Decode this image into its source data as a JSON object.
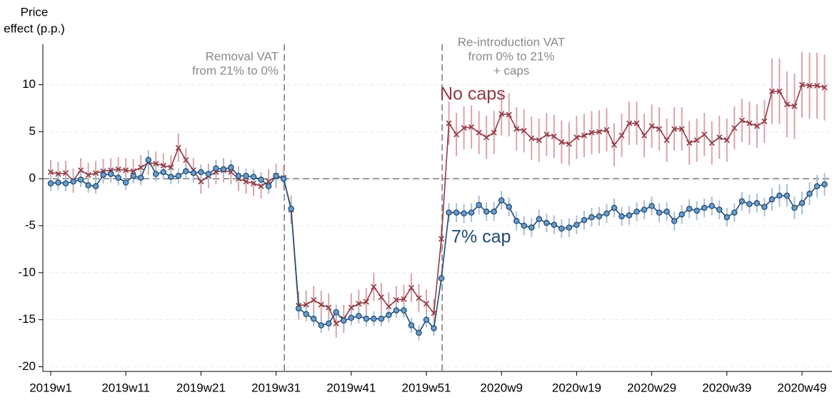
{
  "chart_data": {
    "type": "line",
    "y_label": [
      "Price",
      "effect (p.p.)"
    ],
    "categories": [
      "2019w1",
      null,
      null,
      null,
      null,
      null,
      null,
      null,
      null,
      null,
      "2019w11",
      null,
      null,
      null,
      null,
      null,
      null,
      null,
      null,
      null,
      "2019w21",
      null,
      null,
      null,
      null,
      null,
      null,
      null,
      null,
      null,
      "2019w31",
      null,
      null,
      null,
      null,
      null,
      null,
      null,
      null,
      null,
      "2019w41",
      null,
      null,
      null,
      null,
      null,
      null,
      null,
      null,
      null,
      "2019w51",
      null,
      null,
      null,
      null,
      null,
      null,
      null,
      null,
      null,
      "2020w9",
      null,
      null,
      null,
      null,
      null,
      null,
      null,
      null,
      null,
      "2020w19",
      null,
      null,
      null,
      null,
      null,
      null,
      null,
      null,
      null,
      "2020w29",
      null,
      null,
      null,
      null,
      null,
      null,
      null,
      null,
      null,
      "2020w39",
      null,
      null,
      null,
      null,
      null,
      null,
      null,
      null,
      null,
      "2020w49",
      null,
      null,
      null
    ],
    "ylim": [
      -20.5,
      14.3
    ],
    "yticks": [
      10,
      5,
      0,
      -5,
      -10,
      -15,
      -20
    ],
    "grid": true,
    "reference_lines": {
      "x": [
        31,
        52
      ],
      "y": 0
    },
    "annotations": [
      {
        "lines": [
          "Removal VAT",
          "from 21% to 0%"
        ]
      },
      {
        "lines": [
          "Re-introduction VAT",
          "from 0% to 21%",
          "+ caps"
        ]
      }
    ],
    "series": [
      {
        "name": "No caps",
        "color": "#913a45",
        "error_color": "#dca3ab",
        "marker": "x",
        "values": [
          0.7,
          0.5,
          0.6,
          -0.2,
          0.9,
          0.4,
          0.6,
          0.8,
          0.9,
          1.0,
          0.9,
          0.8,
          1.2,
          1.7,
          1.6,
          1.4,
          1.2,
          3.3,
          2.0,
          0.9,
          -0.3,
          0.3,
          0.7,
          0.9,
          0.7,
          0.0,
          -0.3,
          -0.5,
          -0.8,
          -0.3,
          0.3,
          0.1,
          -3.3,
          -13.5,
          -13.4,
          -12.9,
          -13.4,
          -13.7,
          -15.4,
          -14.9,
          -13.7,
          -13.3,
          -13.1,
          -11.5,
          -12.6,
          -13.6,
          -12.9,
          -12.8,
          -11.6,
          -12.7,
          -13.3,
          -14.3,
          -6.4,
          5.9,
          4.7,
          5.4,
          5.5,
          4.9,
          4.4,
          4.9,
          6.9,
          6.8,
          5.3,
          5.1,
          4.3,
          4.1,
          4.7,
          4.5,
          3.9,
          3.7,
          4.4,
          4.6,
          4.9,
          5.0,
          5.2,
          3.6,
          4.6,
          5.9,
          5.9,
          4.6,
          5.6,
          5.3,
          4.1,
          5.3,
          5.3,
          3.8,
          4.1,
          4.7,
          3.8,
          4.4,
          4.1,
          5.4,
          6.2,
          5.9,
          5.6,
          6.1,
          9.3,
          9.3,
          7.9,
          7.7,
          10.0,
          9.9,
          9.9,
          9.7
        ],
        "errors": [
          1.3,
          1.3,
          1.3,
          1.3,
          1.3,
          1.3,
          1.3,
          1.3,
          1.3,
          1.3,
          1.3,
          1.3,
          1.3,
          1.3,
          1.3,
          1.3,
          1.3,
          1.5,
          1.3,
          1.3,
          1.3,
          1.3,
          1.3,
          1.3,
          1.3,
          1.3,
          1.3,
          1.3,
          1.3,
          1.3,
          1.3,
          1.3,
          1.5,
          1.5,
          1.5,
          1.5,
          1.5,
          1.5,
          1.5,
          1.5,
          1.5,
          1.5,
          1.5,
          1.5,
          1.5,
          1.5,
          1.5,
          1.5,
          1.5,
          1.5,
          1.5,
          1.5,
          1.5,
          2.3,
          2.3,
          2.3,
          2.3,
          2.3,
          2.3,
          2.3,
          2.3,
          2.3,
          2.3,
          2.3,
          2.3,
          2.3,
          2.3,
          2.3,
          2.3,
          2.3,
          2.3,
          2.3,
          2.3,
          2.3,
          2.3,
          2.3,
          2.3,
          2.3,
          2.3,
          2.3,
          2.3,
          2.3,
          2.3,
          2.3,
          2.3,
          2.3,
          2.3,
          2.3,
          2.3,
          2.3,
          2.3,
          2.3,
          2.3,
          2.3,
          2.3,
          2.3,
          3.5,
          3.5,
          3.5,
          3.5,
          3.5,
          3.5,
          3.5,
          3.5
        ]
      },
      {
        "name": "7% cap",
        "color": "#1f4a73",
        "error_color": "#a8bfda",
        "marker": "circle",
        "marker_fill": "#6b9dcc",
        "values": [
          -0.5,
          -0.4,
          -0.5,
          -0.3,
          -0.1,
          -0.7,
          -0.8,
          0.4,
          0.5,
          0.1,
          -0.4,
          0.3,
          0.1,
          2.0,
          0.5,
          0.7,
          0.2,
          0.3,
          0.8,
          0.6,
          0.7,
          0.5,
          1.1,
          1.0,
          1.2,
          0.3,
          0.3,
          0.2,
          -0.1,
          -0.8,
          0.3,
          0.0,
          -3.2,
          -13.8,
          -14.4,
          -14.9,
          -15.6,
          -15.4,
          -14.2,
          -15.1,
          -14.8,
          -14.6,
          -14.9,
          -14.9,
          -14.9,
          -14.5,
          -14.0,
          -14.0,
          -15.6,
          -16.4,
          -15.0,
          -15.9,
          -10.6,
          -3.6,
          -3.6,
          -3.7,
          -3.6,
          -2.8,
          -3.5,
          -3.5,
          -2.3,
          -3.0,
          -4.5,
          -5.0,
          -5.2,
          -4.3,
          -4.7,
          -4.9,
          -5.3,
          -5.2,
          -4.9,
          -4.4,
          -4.1,
          -4.0,
          -3.7,
          -3.1,
          -4.0,
          -3.9,
          -3.5,
          -3.3,
          -2.9,
          -3.6,
          -3.5,
          -4.5,
          -3.8,
          -3.2,
          -3.4,
          -3.1,
          -2.9,
          -3.3,
          -4.1,
          -3.6,
          -2.4,
          -2.7,
          -2.6,
          -3.0,
          -2.2,
          -1.8,
          -1.8,
          -3.1,
          -2.6,
          -1.6,
          -0.8,
          -0.6
        ],
        "errors": [
          0.8,
          0.8,
          0.8,
          0.8,
          0.8,
          0.8,
          0.8,
          0.8,
          0.8,
          0.8,
          0.8,
          0.8,
          0.8,
          0.8,
          0.8,
          0.8,
          0.8,
          0.8,
          0.8,
          0.8,
          0.8,
          0.8,
          0.8,
          0.8,
          0.8,
          0.8,
          0.8,
          0.8,
          0.8,
          0.8,
          0.8,
          0.8,
          0.8,
          0.8,
          0.8,
          0.8,
          0.8,
          0.8,
          0.8,
          0.8,
          0.8,
          0.8,
          0.8,
          0.8,
          0.8,
          0.8,
          0.8,
          0.8,
          0.8,
          0.8,
          0.8,
          0.8,
          0.8,
          1.0,
          1.0,
          1.0,
          1.0,
          1.0,
          1.0,
          1.0,
          1.0,
          1.0,
          1.0,
          1.0,
          1.0,
          1.0,
          1.0,
          1.0,
          1.0,
          1.0,
          1.0,
          1.0,
          1.0,
          1.0,
          1.0,
          1.0,
          1.0,
          1.0,
          1.0,
          1.0,
          1.0,
          1.0,
          1.0,
          1.0,
          1.0,
          1.0,
          1.0,
          1.0,
          1.0,
          1.0,
          1.0,
          1.0,
          1.0,
          1.0,
          1.0,
          1.0,
          1.2,
          1.2,
          1.2,
          1.2,
          1.2,
          1.2,
          1.2,
          1.2
        ]
      }
    ]
  }
}
